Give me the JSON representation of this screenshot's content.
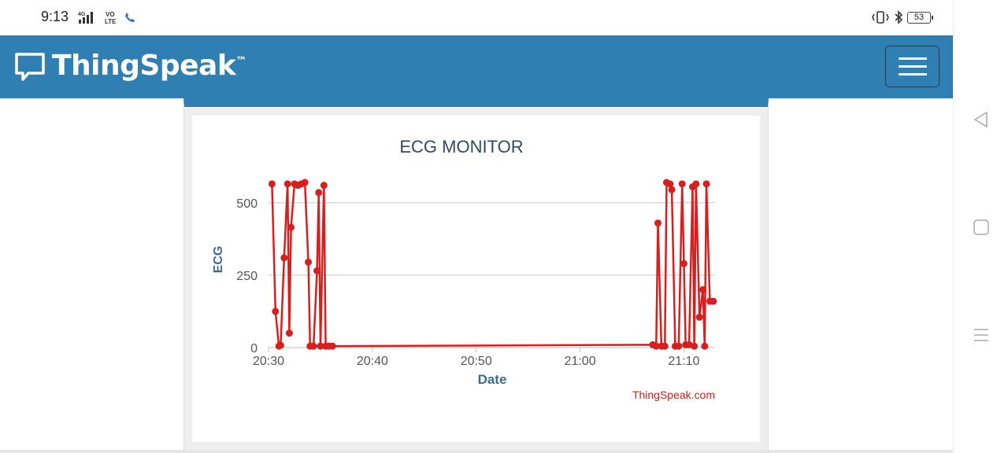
{
  "status_bar": {
    "time": "9:13",
    "network_label": "4G",
    "volte_label": "VO LTE",
    "battery": "53"
  },
  "header": {
    "brand": "ThingSpeak",
    "trademark": "™",
    "background_color": "#2f7fb3"
  },
  "chart_data": {
    "type": "line",
    "title": "ECG MONITOR",
    "xlabel": "Date",
    "ylabel": "ECG",
    "credit": "ThingSpeak.com",
    "ylim": [
      0,
      570
    ],
    "xlim": [
      "20:30",
      "21:13"
    ],
    "yticks": [
      0,
      250,
      500
    ],
    "xticks": [
      "20:30",
      "20:40",
      "20:50",
      "21:00",
      "21:10"
    ],
    "grid": true,
    "line_color": "#d62020",
    "series": [
      {
        "x": [
          "20:30:20",
          "20:30:40",
          "20:31:00",
          "20:31:10",
          "20:31:30",
          "20:31:50",
          "20:32:00",
          "20:32:10",
          "20:32:30",
          "20:32:50",
          "20:33:10",
          "20:33:30",
          "20:33:50",
          "20:34:00",
          "20:34:20",
          "20:34:40",
          "20:34:50",
          "20:35:00",
          "20:35:20",
          "20:35:30",
          "20:35:50",
          "20:36:10",
          "21:07:00",
          "21:07:20",
          "21:07:30",
          "21:07:50",
          "21:08:10",
          "21:08:20",
          "21:08:40",
          "21:08:50",
          "21:09:10",
          "21:09:30",
          "21:09:50",
          "21:10:00",
          "21:10:10",
          "21:10:30",
          "21:10:50",
          "21:11:00",
          "21:11:10",
          "21:11:30",
          "21:11:50",
          "21:12:00",
          "21:12:10",
          "21:12:30",
          "21:12:50"
        ],
        "values": [
          565,
          125,
          5,
          8,
          310,
          565,
          50,
          415,
          565,
          560,
          565,
          570,
          295,
          5,
          5,
          265,
          535,
          5,
          560,
          5,
          5,
          5,
          10,
          5,
          430,
          5,
          5,
          570,
          565,
          545,
          5,
          5,
          565,
          290,
          10,
          10,
          555,
          5,
          565,
          105,
          200,
          5,
          565,
          160,
          160
        ]
      }
    ]
  }
}
